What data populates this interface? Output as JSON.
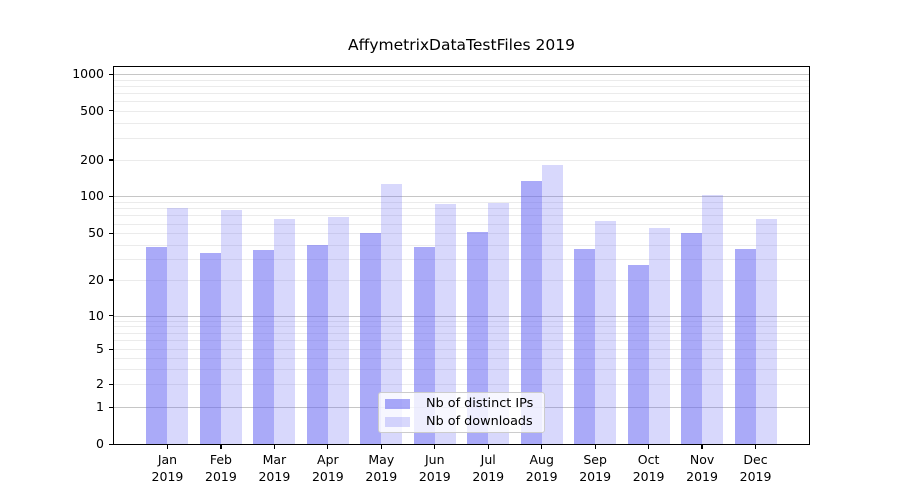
{
  "title": "AffymetrixDataTestFiles 2019",
  "chart_data": {
    "type": "bar",
    "title": "AffymetrixDataTestFiles 2019",
    "xlabel": "",
    "ylabel": "",
    "yscale": "symlog",
    "yticks": [
      0,
      1,
      2,
      5,
      10,
      20,
      50,
      100,
      200,
      500,
      1000
    ],
    "ylim": [
      0,
      1150
    ],
    "grid": true,
    "legend_position": "lower center",
    "x_tick_months": [
      "Jan",
      "Feb",
      "Mar",
      "Apr",
      "May",
      "Jun",
      "Jul",
      "Aug",
      "Sep",
      "Oct",
      "Nov",
      "Dec"
    ],
    "x_tick_year": "2019",
    "series": [
      {
        "name": "Nb of distinct IPs",
        "color": "rgba(101,101,243,0.55)",
        "values": [
          38,
          34,
          36,
          40,
          50,
          38,
          51,
          133,
          37,
          27,
          50,
          37
        ]
      },
      {
        "name": "Nb of downloads",
        "color": "rgba(101,101,243,0.25)",
        "values": [
          81,
          78,
          66,
          68,
          127,
          87,
          88,
          180,
          63,
          55,
          103,
          65
        ]
      }
    ]
  }
}
